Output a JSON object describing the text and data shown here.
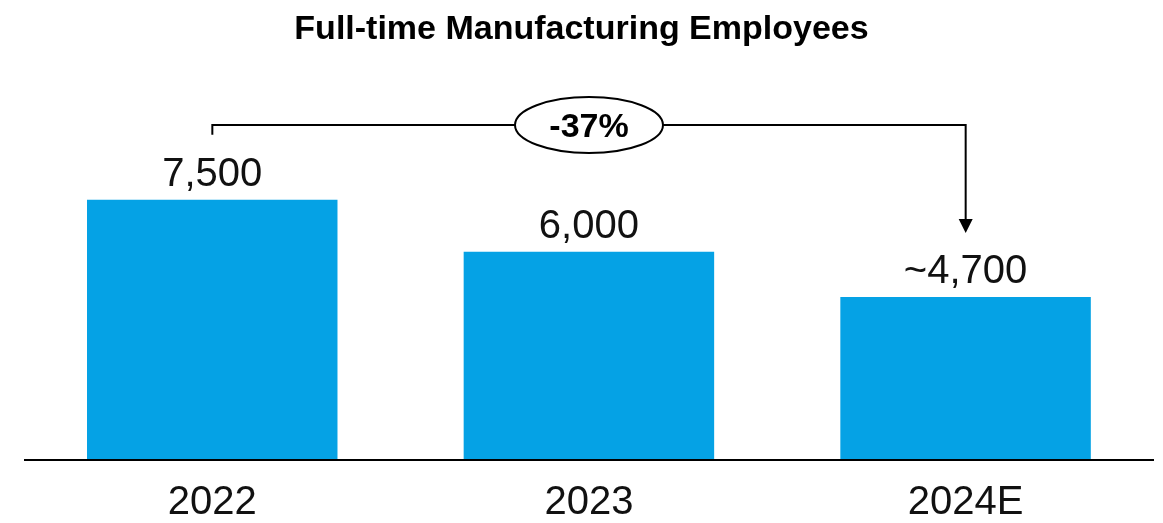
{
  "chart_data": {
    "type": "bar",
    "title": "Full-time Manufacturing Employees",
    "categories": [
      "2022",
      "2023",
      "2024E"
    ],
    "values": [
      7500,
      6000,
      4700
    ],
    "value_labels": [
      "7,500",
      "6,000",
      "~4,700"
    ],
    "color": "#05a2e5",
    "annotations": [
      "-37%"
    ]
  }
}
